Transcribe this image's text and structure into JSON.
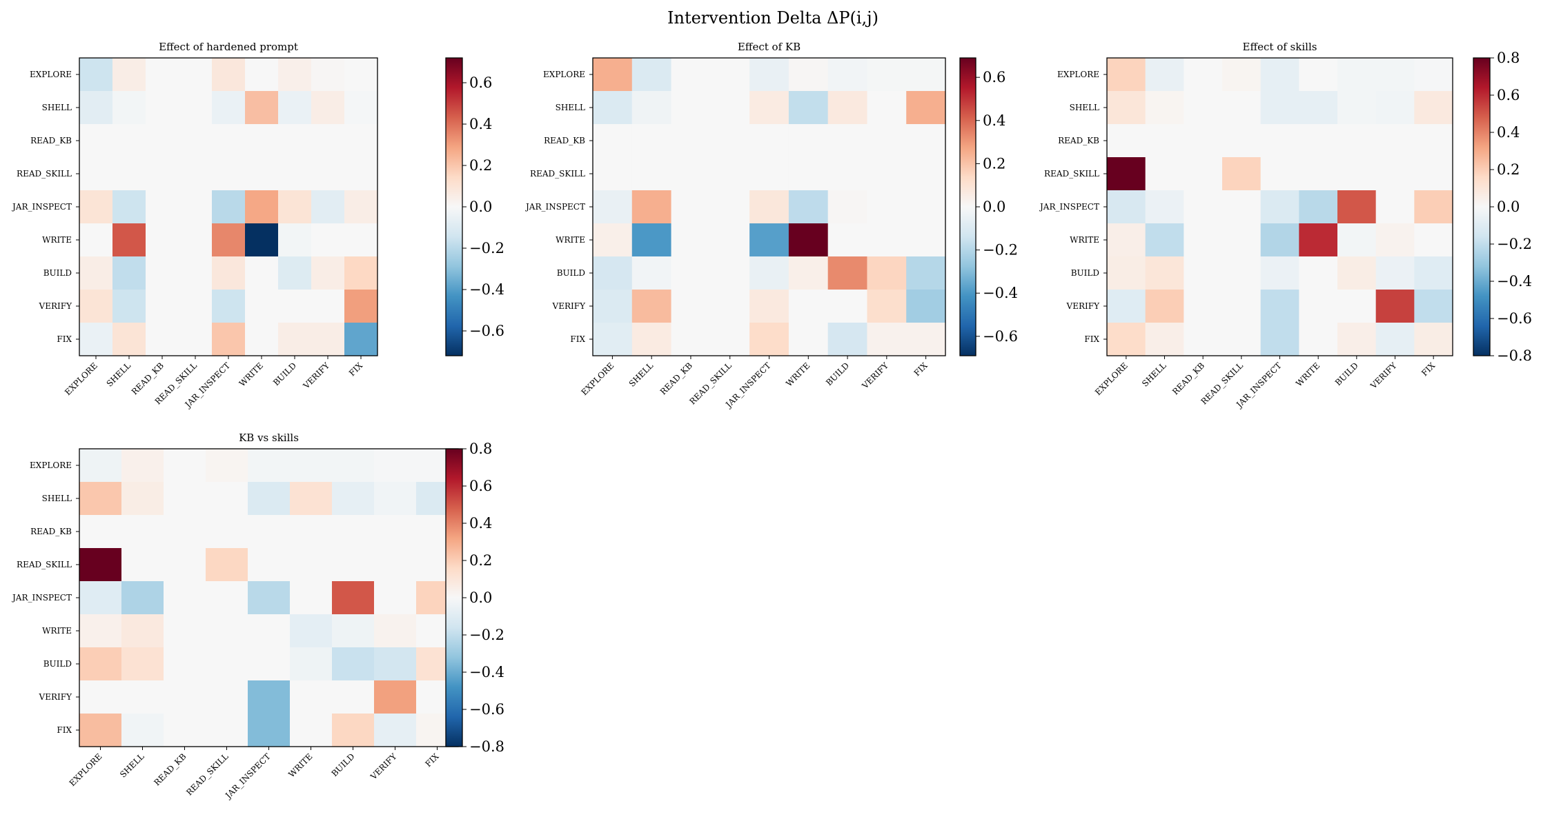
{
  "figure": {
    "title": "Intervention Delta ΔP(i,j)"
  },
  "labels": [
    "EXPLORE",
    "SHELL",
    "READ_KB",
    "READ_SKILL",
    "JAR_INSPECT",
    "WRITE",
    "BUILD",
    "VERIFY",
    "FIX"
  ],
  "chart_data": [
    {
      "type": "heatmap",
      "title": "Effect of hardened prompt",
      "colormap": "RdBu_r",
      "vmin": -0.72,
      "vmax": 0.72,
      "colorbar_ticks": [
        -0.6,
        -0.4,
        -0.2,
        0.0,
        0.2,
        0.4,
        0.6
      ],
      "colorbar_tick_labels": [
        "−0.6",
        "−0.4",
        "−0.2",
        "0.0",
        "0.2",
        "0.4",
        "0.6"
      ],
      "values": [
        [
          -0.15,
          0.05,
          0,
          0,
          0.08,
          0,
          0.04,
          0.01,
          0
        ],
        [
          -0.08,
          -0.02,
          0,
          0,
          -0.05,
          0.22,
          -0.05,
          0.05,
          -0.01
        ],
        [
          0,
          0,
          0,
          0,
          0,
          0,
          0,
          0,
          0
        ],
        [
          0,
          0,
          0,
          0,
          0,
          0,
          0,
          0,
          0
        ],
        [
          0.1,
          -0.15,
          0,
          0,
          -0.2,
          0.28,
          0.1,
          -0.08,
          0.05
        ],
        [
          0,
          0.45,
          0,
          0,
          0.35,
          -0.72,
          -0.02,
          0,
          0
        ],
        [
          0.05,
          -0.18,
          0,
          0,
          0.08,
          0,
          -0.1,
          0.05,
          0.15
        ],
        [
          0.1,
          -0.15,
          0,
          0,
          -0.15,
          0,
          0,
          0,
          0.3
        ],
        [
          -0.05,
          0.1,
          0,
          0,
          0.2,
          0,
          0.05,
          0.05,
          -0.38
        ]
      ]
    },
    {
      "type": "heatmap",
      "title": "Effect of KB",
      "colormap": "RdBu_r",
      "vmin": -0.69,
      "vmax": 0.69,
      "colorbar_ticks": [
        -0.6,
        -0.4,
        -0.2,
        0.0,
        0.2,
        0.4,
        0.6
      ],
      "colorbar_tick_labels": [
        "−0.6",
        "−0.4",
        "−0.2",
        "0.0",
        "0.2",
        "0.4",
        "0.6"
      ],
      "values": [
        [
          0.25,
          -0.1,
          0,
          0,
          -0.05,
          0.01,
          -0.02,
          -0.01,
          -0.01
        ],
        [
          -0.1,
          -0.03,
          0,
          0,
          0.06,
          -0.17,
          0.07,
          0,
          0.25
        ],
        [
          0,
          0,
          0,
          0,
          0,
          0,
          0,
          0,
          0
        ],
        [
          0,
          0,
          0,
          0,
          0,
          0,
          0,
          0,
          0
        ],
        [
          -0.05,
          0.25,
          0,
          0,
          0.08,
          -0.18,
          0.01,
          0,
          0
        ],
        [
          0.04,
          -0.4,
          0,
          0,
          -0.38,
          0.69,
          0,
          0,
          0
        ],
        [
          -0.12,
          -0.02,
          0,
          0,
          -0.05,
          0.04,
          0.33,
          0.15,
          -0.2
        ],
        [
          -0.1,
          0.22,
          0,
          0,
          0.07,
          0,
          0,
          0.12,
          -0.24
        ],
        [
          -0.08,
          0.06,
          0,
          0,
          0.13,
          0,
          -0.12,
          0.03,
          0.03
        ]
      ]
    },
    {
      "type": "heatmap",
      "title": "Effect of skills",
      "colormap": "RdBu_r",
      "vmin": -0.8,
      "vmax": 0.8,
      "colorbar_ticks": [
        -0.8,
        -0.6,
        -0.4,
        -0.2,
        0.0,
        0.2,
        0.4,
        0.6,
        0.8
      ],
      "colorbar_tick_labels": [
        "−0.8",
        "−0.6",
        "−0.4",
        "−0.2",
        "0.0",
        "0.2",
        "0.4",
        "0.6",
        "0.8"
      ],
      "values": [
        [
          0.18,
          -0.06,
          0,
          0.02,
          -0.07,
          0,
          -0.02,
          -0.02,
          -0.01
        ],
        [
          0.1,
          0.02,
          0,
          0,
          -0.07,
          -0.07,
          -0.02,
          -0.03,
          0.08
        ],
        [
          0,
          0,
          0,
          0,
          0,
          0,
          0,
          0,
          0
        ],
        [
          0.8,
          0,
          0,
          0.18,
          0,
          0,
          0,
          0,
          0
        ],
        [
          -0.13,
          -0.05,
          0,
          0,
          -0.12,
          -0.22,
          0.5,
          0,
          0.2
        ],
        [
          0.05,
          -0.2,
          0,
          0,
          -0.24,
          0.6,
          -0.02,
          0.03,
          0
        ],
        [
          0.06,
          0.1,
          0,
          0,
          -0.05,
          0,
          0.06,
          -0.05,
          -0.1
        ],
        [
          -0.1,
          0.2,
          0,
          0,
          -0.2,
          0,
          0,
          0.55,
          -0.2
        ],
        [
          0.15,
          0.05,
          0,
          0,
          -0.2,
          0,
          0.05,
          -0.07,
          0.06
        ]
      ]
    },
    {
      "type": "heatmap",
      "title": "KB vs skills",
      "colormap": "RdBu_r",
      "vmin": -0.8,
      "vmax": 0.8,
      "colorbar_ticks": [
        -0.8,
        -0.6,
        -0.4,
        -0.2,
        0.0,
        0.2,
        0.4,
        0.6,
        0.8
      ],
      "colorbar_tick_labels": [
        "−0.8",
        "−0.6",
        "−0.4",
        "−0.2",
        "0.0",
        "0.2",
        "0.4",
        "0.6",
        "0.8"
      ],
      "values": [
        [
          -0.04,
          0.04,
          0,
          0.02,
          -0.02,
          -0.02,
          -0.02,
          -0.01,
          -0.01
        ],
        [
          0.22,
          0.06,
          0,
          0,
          -0.12,
          0.12,
          -0.07,
          -0.03,
          -0.12
        ],
        [
          0,
          0,
          0,
          0,
          0,
          0,
          0,
          0,
          0
        ],
        [
          0.8,
          0,
          0,
          0.17,
          0,
          0,
          0,
          0,
          0
        ],
        [
          -0.1,
          -0.25,
          0,
          0,
          -0.22,
          0,
          0.5,
          0,
          0.18
        ],
        [
          0.04,
          0.08,
          0,
          0,
          0,
          -0.08,
          -0.04,
          0.03,
          0
        ],
        [
          0.2,
          0.12,
          0,
          0,
          0,
          -0.04,
          -0.18,
          -0.15,
          0.12
        ],
        [
          0,
          0,
          0,
          0,
          -0.35,
          0,
          0,
          0.33,
          0
        ],
        [
          0.25,
          -0.03,
          0,
          0,
          -0.35,
          0,
          0.17,
          -0.07,
          0.02
        ]
      ]
    }
  ]
}
